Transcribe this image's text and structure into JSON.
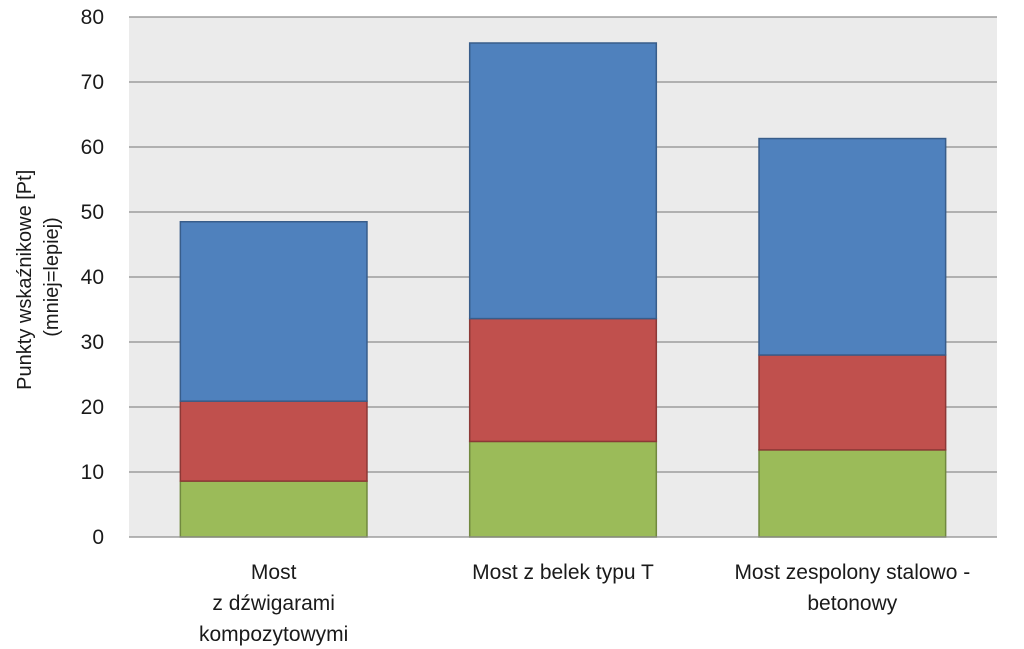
{
  "chart_data": {
    "type": "bar",
    "stacked": true,
    "categories": [
      [
        "Most",
        "z dźwigarami",
        "kompozytowymi"
      ],
      [
        "Most z belek typu T"
      ],
      [
        "Most zespolony stalowo -",
        "betonowy"
      ]
    ],
    "series": [
      {
        "color": "#9bbb59",
        "values": [
          8.6,
          14.7,
          13.4
        ]
      },
      {
        "color": "#c0504d",
        "values": [
          12.3,
          18.9,
          14.6
        ]
      },
      {
        "color": "#4f81bd",
        "values": [
          27.6,
          42.4,
          33.3
        ]
      }
    ],
    "ylabel": [
      "Punkty wskaźnikowe [Pt]",
      "(mniej=lepiej)"
    ],
    "ylim": [
      0,
      80
    ],
    "yticks": [
      0,
      10,
      20,
      30,
      40,
      50,
      60,
      70,
      80
    ],
    "grid": true,
    "plot_background": "#ebebeb",
    "gridline_color": "#8c8c8c"
  }
}
